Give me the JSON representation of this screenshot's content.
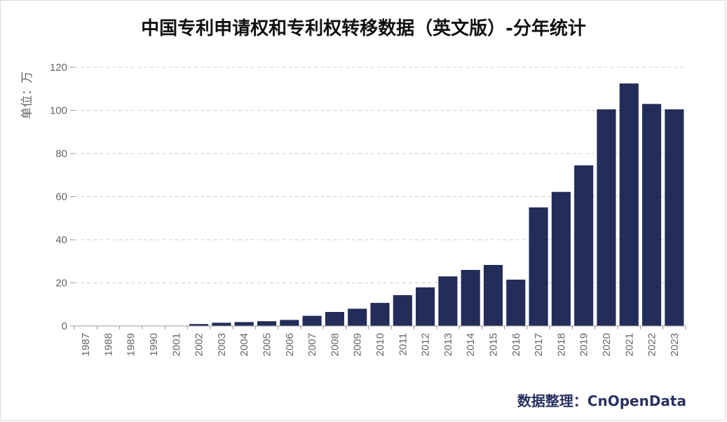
{
  "chart_data": {
    "type": "bar",
    "title": "中国专利申请权和专利权转移数据（英文版）-分年统计",
    "ylabel": "单位：万",
    "xlabel": "",
    "ylim": [
      0,
      120
    ],
    "yticks": [
      0,
      20,
      40,
      60,
      80,
      100,
      120
    ],
    "grid": true,
    "categories": [
      "1987",
      "1988",
      "1989",
      "1990",
      "2001",
      "2002",
      "2003",
      "2004",
      "2005",
      "2006",
      "2007",
      "2008",
      "2009",
      "2010",
      "2011",
      "2012",
      "2013",
      "2014",
      "2015",
      "2016",
      "2017",
      "2018",
      "2019",
      "2020",
      "2021",
      "2022",
      "2023"
    ],
    "values": [
      0.02,
      0.02,
      0.02,
      0.02,
      0.05,
      0.9,
      1.5,
      1.8,
      2.2,
      2.8,
      4.7,
      6.5,
      8.0,
      10.7,
      14.3,
      17.9,
      23.0,
      26.0,
      28.3,
      21.5,
      55.0,
      62.2,
      74.5,
      100.5,
      112.5,
      103.0,
      100.5
    ],
    "bar_color": "#222d5a"
  },
  "source": "数据整理：CnOpenData"
}
